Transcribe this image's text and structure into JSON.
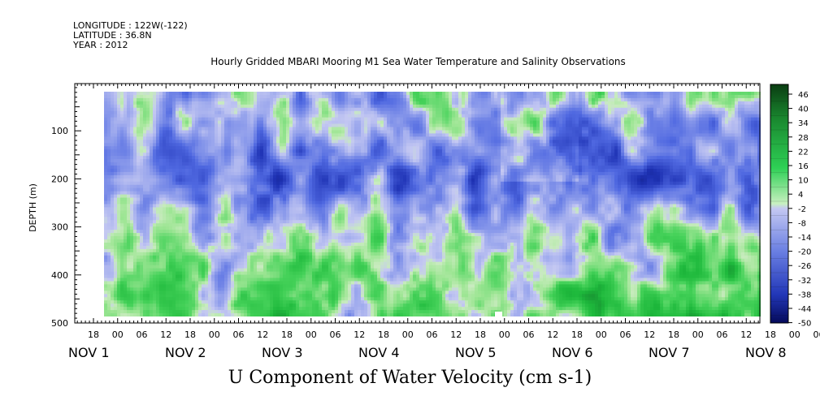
{
  "header": {
    "longitude": "LONGITUDE : 122W(-122)",
    "latitude": "LATITUDE : 36.8N",
    "year": "YEAR : 2012"
  },
  "chart_data": {
    "type": "heatmap",
    "title": "Hourly Gridded MBARI Mooring M1 Sea Water Temperature and Salinity Observations",
    "xlabel": "U Component of Water Velocity (cm s-1)",
    "ylabel": "DEPTH (m)",
    "ylim": [
      500,
      0
    ],
    "yticks": [
      100,
      200,
      300,
      400,
      500
    ],
    "x_hour_ticks": [
      "18",
      "00",
      "06",
      "12",
      "18",
      "00",
      "06",
      "12",
      "18",
      "00",
      "06",
      "12",
      "18",
      "00",
      "06",
      "12",
      "18",
      "00",
      "06",
      "12",
      "18",
      "00",
      "06",
      "12",
      "18",
      "00",
      "06",
      "12",
      "18",
      "00",
      "06",
      "12"
    ],
    "x_day_labels": [
      "NOV  1",
      "NOV  2",
      "NOV  3",
      "NOV  4",
      "NOV  5",
      "NOV  6",
      "NOV  7",
      "NOV  8"
    ],
    "colorbar": {
      "min": -50,
      "max": 50,
      "step": 3,
      "labels": [
        "46",
        "40",
        "34",
        "28",
        "22",
        "16",
        "10",
        "4",
        "-2",
        "-8",
        "-14",
        "-20",
        "-26",
        "-32",
        "-38",
        "-44",
        "-50"
      ]
    },
    "colors": {
      "strong_negative": "#0a1a7a",
      "negative": "#5a78e0",
      "weak_negative": "#a9b4ee",
      "weak_positive": "#a6e6a0",
      "positive": "#2ed055",
      "strong_positive": "#0a3d12"
    },
    "pattern_notes": "Predominantly weakly negative (-8 to -2) blue-lavender field with darker blue (-20) patches at 150-250 m; green positive bands near surface and in lower depths (250-490 m), strongest after Nov 6."
  }
}
